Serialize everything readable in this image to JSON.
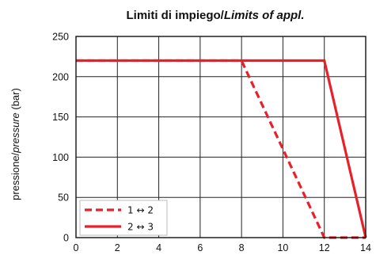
{
  "chart_data": {
    "type": "line",
    "title": "Limiti di impiego/",
    "title_italic": "Limits of appl.",
    "xlabel": "",
    "ylabel": "pressione/",
    "ylabel_italic": "pressure",
    "ylabel_unit": " (bar)",
    "xlim": [
      0,
      14
    ],
    "ylim": [
      0,
      250
    ],
    "x_ticks": [
      0,
      2,
      4,
      6,
      8,
      10,
      12,
      14
    ],
    "y_ticks": [
      0,
      50,
      100,
      150,
      200,
      250
    ],
    "grid": true,
    "legend_position": "bottom-left",
    "series": [
      {
        "name": "1 ↔ 2",
        "style": "dashed",
        "color": "#e8202a",
        "points": [
          [
            0,
            220
          ],
          [
            8,
            220
          ],
          [
            12,
            0
          ],
          [
            14,
            0
          ]
        ]
      },
      {
        "name": "2 ↔ 3",
        "style": "solid",
        "color": "#e8202a",
        "points": [
          [
            0,
            220
          ],
          [
            12,
            220
          ],
          [
            14,
            0
          ]
        ]
      }
    ]
  }
}
